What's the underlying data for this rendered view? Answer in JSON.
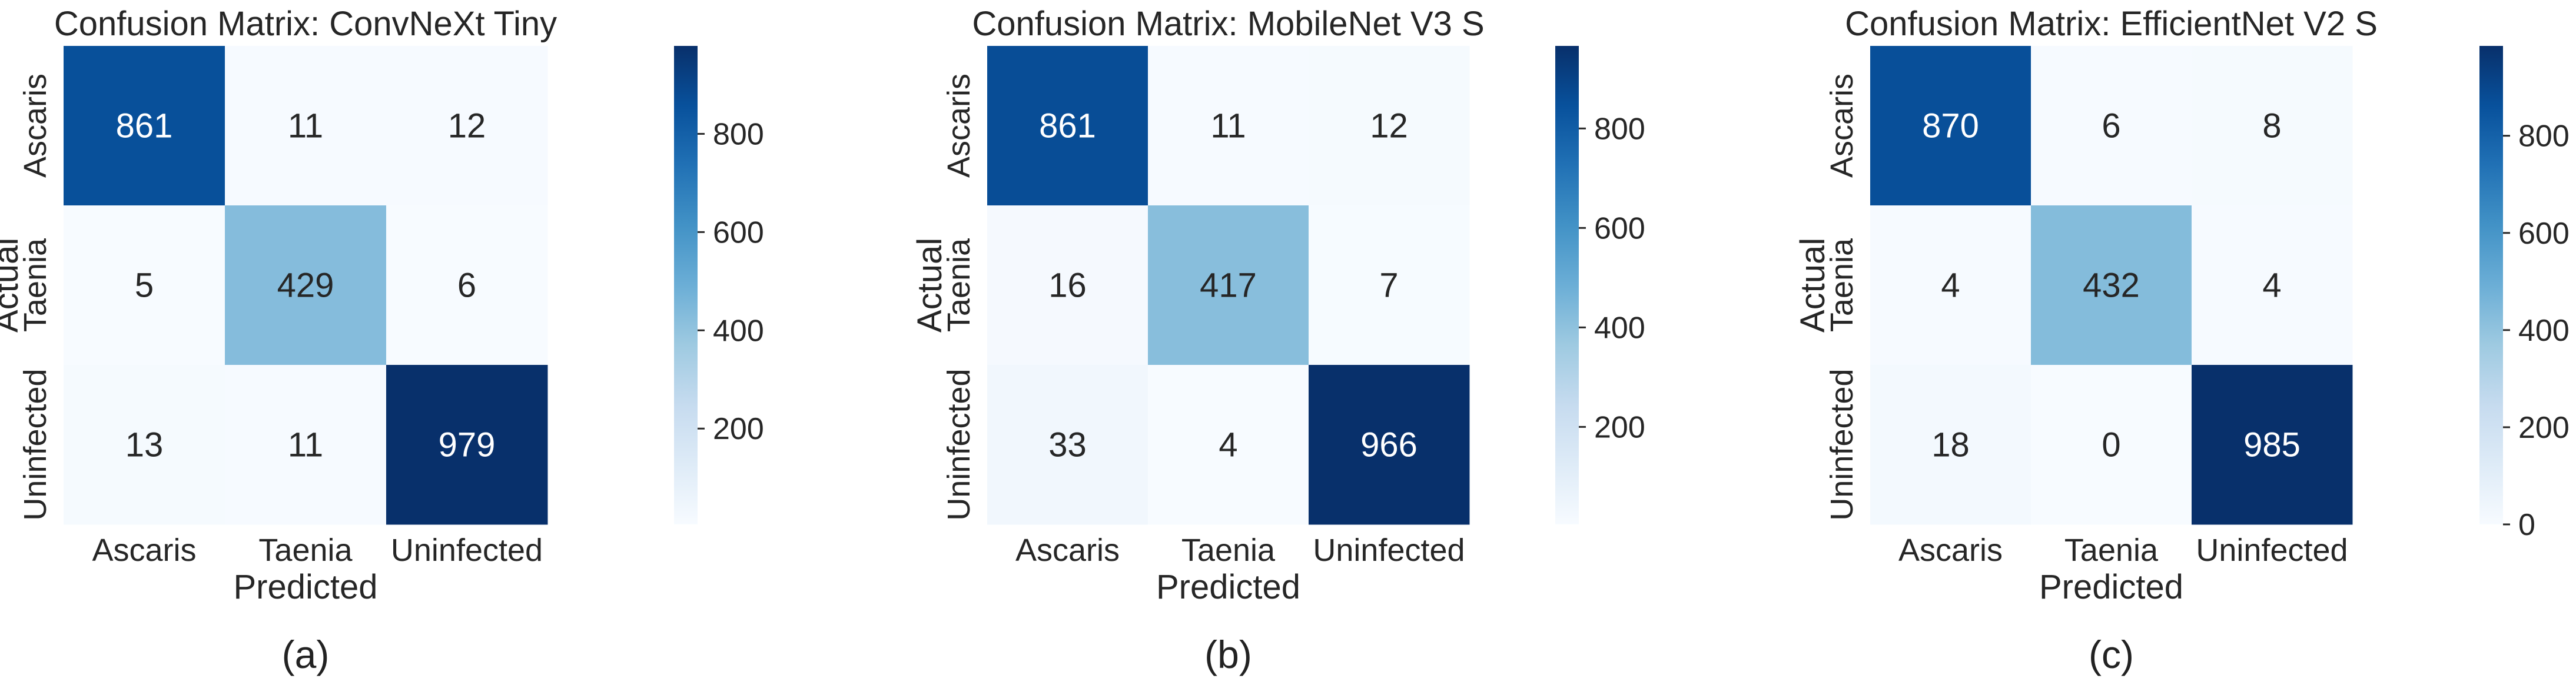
{
  "chart_data": [
    {
      "type": "heatmap",
      "title": "Confusion Matrix: ConvNeXt Tiny",
      "xlabel": "Predicted",
      "ylabel": "Actual",
      "x_categories": [
        "Ascaris",
        "Taenia",
        "Uninfected"
      ],
      "y_categories": [
        "Ascaris",
        "Taenia",
        "Uninfected"
      ],
      "values": [
        [
          861,
          11,
          12
        ],
        [
          5,
          429,
          6
        ],
        [
          13,
          11,
          979
        ]
      ],
      "colorbar_ticks": [
        200,
        400,
        600,
        800
      ],
      "colorbar_range": [
        5,
        979
      ],
      "colormap": "Blues",
      "caption": "(a)"
    },
    {
      "type": "heatmap",
      "title": "Confusion Matrix: MobileNet V3 S",
      "xlabel": "Predicted",
      "ylabel": "Actual",
      "x_categories": [
        "Ascaris",
        "Taenia",
        "Uninfected"
      ],
      "y_categories": [
        "Ascaris",
        "Taenia",
        "Uninfected"
      ],
      "values": [
        [
          861,
          11,
          12
        ],
        [
          16,
          417,
          7
        ],
        [
          33,
          4,
          966
        ]
      ],
      "colorbar_ticks": [
        200,
        400,
        600,
        800
      ],
      "colorbar_range": [
        4,
        966
      ],
      "colormap": "Blues",
      "caption": "(b)"
    },
    {
      "type": "heatmap",
      "title": "Confusion Matrix: EfficientNet V2 S",
      "xlabel": "Predicted",
      "ylabel": "Actual",
      "x_categories": [
        "Ascaris",
        "Taenia",
        "Uninfected"
      ],
      "y_categories": [
        "Ascaris",
        "Taenia",
        "Uninfected"
      ],
      "values": [
        [
          870,
          6,
          8
        ],
        [
          4,
          432,
          4
        ],
        [
          18,
          0,
          985
        ]
      ],
      "colorbar_ticks": [
        0,
        200,
        400,
        600,
        800
      ],
      "colorbar_range": [
        0,
        985
      ],
      "colormap": "Blues",
      "caption": "(c)"
    }
  ]
}
